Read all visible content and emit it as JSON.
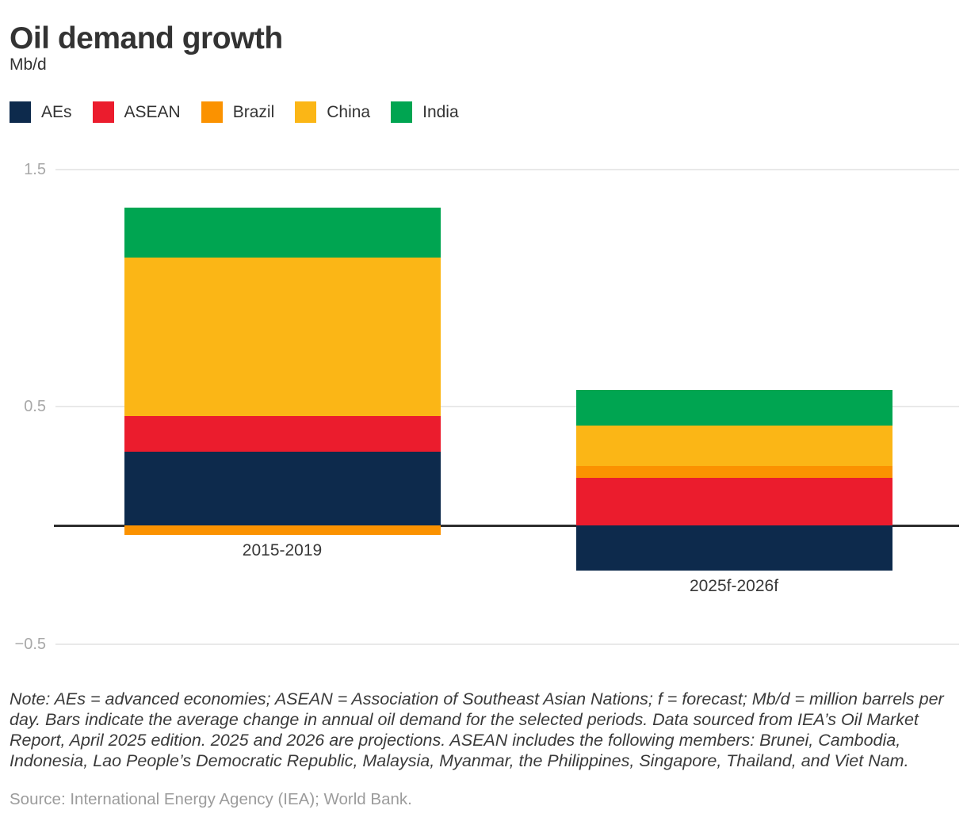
{
  "title": "Oil demand growth",
  "unit_label": "Mb/d",
  "legend": [
    {
      "label": "AEs",
      "color": "#0d2a4c"
    },
    {
      "label": "ASEAN",
      "color": "#eb1c2d"
    },
    {
      "label": "Brazil",
      "color": "#fb9200"
    },
    {
      "label": "China",
      "color": "#fbb616"
    },
    {
      "label": "India",
      "color": "#00a551"
    }
  ],
  "chart_data": {
    "type": "bar",
    "stacked": true,
    "title": "Oil demand growth",
    "ylabel": "Mb/d",
    "categories": [
      "2015-2019",
      "2025f-2026f"
    ],
    "series": [
      {
        "name": "AEs",
        "color": "#0d2a4c",
        "values": [
          0.31,
          -0.19
        ]
      },
      {
        "name": "ASEAN",
        "color": "#eb1c2d",
        "values": [
          0.15,
          0.2
        ]
      },
      {
        "name": "Brazil",
        "color": "#fb9200",
        "values": [
          -0.04,
          0.05
        ]
      },
      {
        "name": "China",
        "color": "#fbb616",
        "values": [
          0.67,
          0.17
        ]
      },
      {
        "name": "India",
        "color": "#00a551",
        "values": [
          0.21,
          0.15
        ]
      }
    ],
    "bar_totals_net": [
      1.3,
      0.38
    ],
    "yticks": [
      1.5,
      0.5,
      -0.5
    ],
    "ytick_labels": [
      "1.5",
      "0.5",
      "−0.5"
    ],
    "ylim": [
      -0.65,
      1.6
    ],
    "grid": true,
    "zero_line": true,
    "legend_position": "top",
    "colors": {
      "grid": "#e9e9e9",
      "zero_line": "#2d2d2d",
      "tick_label": "#a8a8a8",
      "category_label": "#383838"
    }
  },
  "footer": {
    "note": "Note: AEs = advanced economies; ASEAN = Association of Southeast Asian Nations; f = forecast; Mb/d = million barrels per day. Bars indicate the average change in annual oil demand for the selected periods. Data sourced from IEA’s Oil Market Report, April 2025 edition. 2025 and 2026 are projections. ASEAN includes the following members: Brunei, Cambodia, Indonesia, Lao People’s Democratic Republic, Malaysia, Myanmar, the Philippines, Singapore, Thailand, and Viet Nam.",
    "source": "Source: International Energy Agency (IEA); World Bank."
  }
}
